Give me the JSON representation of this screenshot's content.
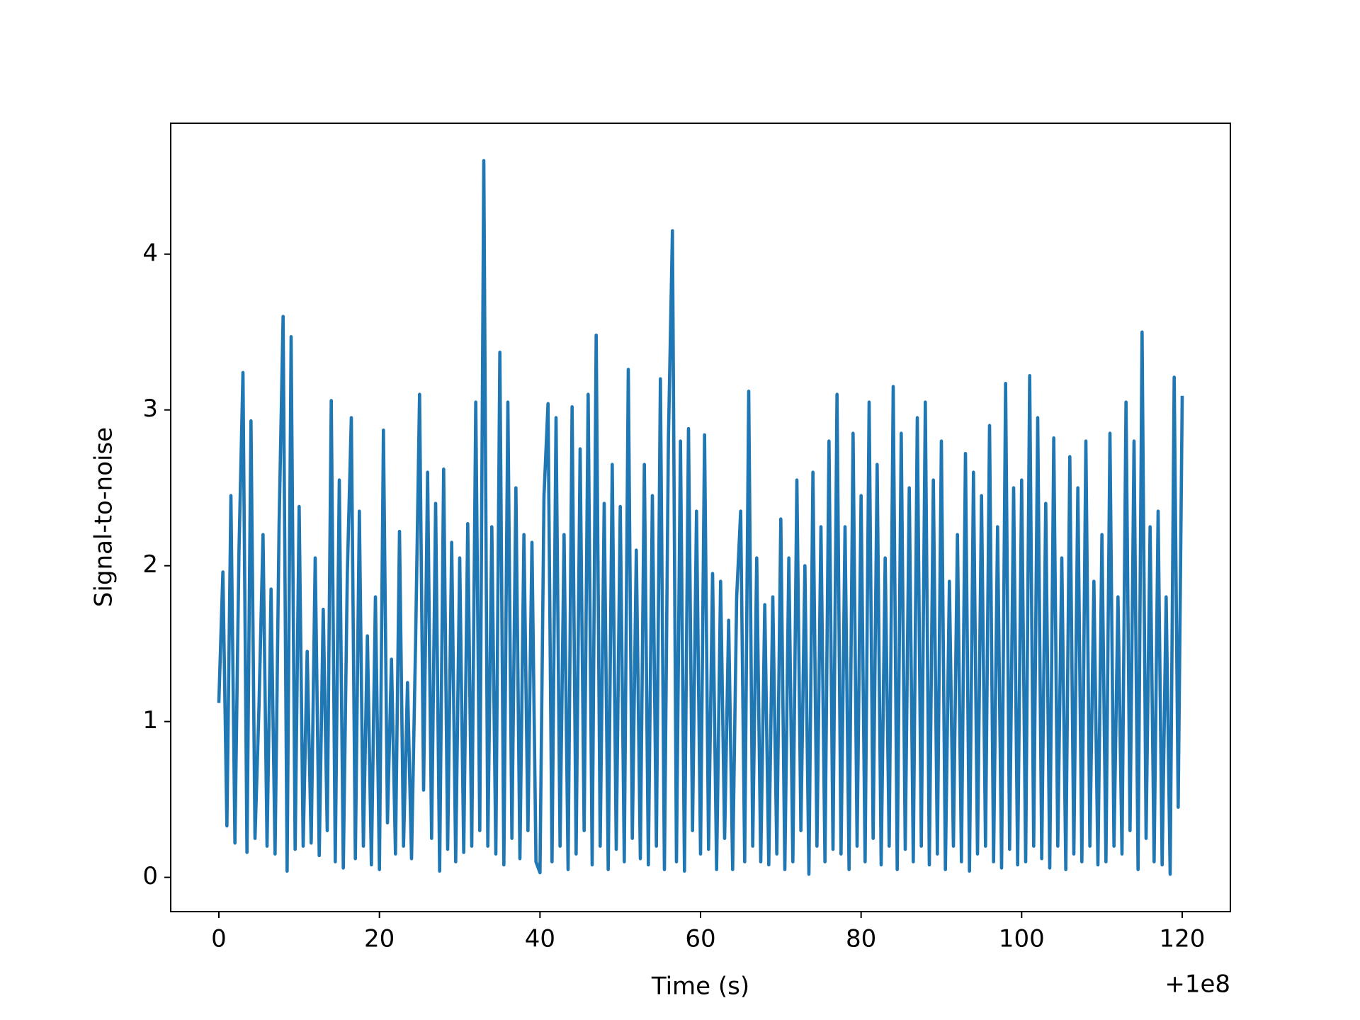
{
  "chart_data": {
    "type": "line",
    "xlabel": "Time (s)",
    "ylabel": "Signal-to-noise",
    "x_offset_label": "+1e8",
    "xlim": [
      -6,
      126
    ],
    "xticks": [
      0,
      20,
      40,
      60,
      80,
      100,
      120
    ],
    "ylim": [
      -0.22,
      4.84
    ],
    "yticks": [
      0,
      1,
      2,
      3,
      4
    ],
    "grid": false,
    "x": [
      0,
      0.5,
      1,
      1.5,
      2,
      2.5,
      3,
      3.5,
      4,
      4.5,
      5,
      5.5,
      6,
      6.5,
      7,
      7.5,
      8,
      8.5,
      9,
      9.5,
      10,
      10.5,
      11,
      11.5,
      12,
      12.5,
      13,
      13.5,
      14,
      14.5,
      15,
      15.5,
      16,
      16.5,
      17,
      17.5,
      18,
      18.5,
      19,
      19.5,
      20,
      20.5,
      21,
      21.5,
      22,
      22.5,
      23,
      23.5,
      24,
      24.5,
      25,
      25.5,
      26,
      26.5,
      27,
      27.5,
      28,
      28.5,
      29,
      29.5,
      30,
      30.5,
      31,
      31.5,
      32,
      32.5,
      33,
      33.5,
      34,
      34.5,
      35,
      35.5,
      36,
      36.5,
      37,
      37.5,
      38,
      38.5,
      39,
      39.5,
      40,
      40.5,
      41,
      41.5,
      42,
      42.5,
      43,
      43.5,
      44,
      44.5,
      45,
      45.5,
      46,
      46.5,
      47,
      47.5,
      48,
      48.5,
      49,
      49.5,
      50,
      50.5,
      51,
      51.5,
      52,
      52.5,
      53,
      53.5,
      54,
      54.5,
      55,
      55.5,
      56,
      56.5,
      57,
      57.5,
      58,
      58.5,
      59,
      59.5,
      60,
      60.5,
      61,
      61.5,
      62,
      62.5,
      63,
      63.5,
      64,
      64.5,
      65,
      65.5,
      66,
      66.5,
      67,
      67.5,
      68,
      68.5,
      69,
      69.5,
      70,
      70.5,
      71,
      71.5,
      72,
      72.5,
      73,
      73.5,
      74,
      74.5,
      75,
      75.5,
      76,
      76.5,
      77,
      77.5,
      78,
      78.5,
      79,
      79.5,
      80,
      80.5,
      81,
      81.5,
      82,
      82.5,
      83,
      83.5,
      84,
      84.5,
      85,
      85.5,
      86,
      86.5,
      87,
      87.5,
      88,
      88.5,
      89,
      89.5,
      90,
      90.5,
      91,
      91.5,
      92,
      92.5,
      93,
      93.5,
      94,
      94.5,
      95,
      95.5,
      96,
      96.5,
      97,
      97.5,
      98,
      98.5,
      99,
      99.5,
      100,
      100.5,
      101,
      101.5,
      102,
      102.5,
      103,
      103.5,
      104,
      104.5,
      105,
      105.5,
      106,
      106.5,
      107,
      107.5,
      108,
      108.5,
      109,
      109.5,
      110,
      110.5,
      111,
      111.5,
      112,
      112.5,
      113,
      113.5,
      114,
      114.5,
      115,
      115.5,
      116,
      116.5,
      117,
      117.5,
      118,
      118.5,
      119,
      119.5,
      120
    ],
    "series": [
      {
        "color": "#1f77b4",
        "values": [
          1.13,
          1.96,
          0.33,
          2.45,
          0.22,
          2.08,
          3.24,
          0.16,
          2.93,
          0.25,
          1.1,
          2.2,
          0.2,
          1.85,
          0.15,
          2.26,
          3.6,
          0.04,
          3.47,
          0.18,
          2.38,
          0.2,
          1.45,
          0.22,
          2.05,
          0.14,
          1.72,
          0.3,
          3.06,
          0.1,
          2.55,
          0.06,
          1.95,
          2.95,
          0.12,
          2.35,
          0.2,
          1.55,
          0.08,
          1.8,
          0.05,
          2.87,
          0.35,
          1.4,
          0.15,
          2.22,
          0.2,
          1.25,
          0.12,
          1.5,
          3.1,
          0.56,
          2.6,
          0.25,
          2.4,
          0.04,
          2.62,
          0.18,
          2.15,
          0.1,
          2.05,
          0.16,
          2.27,
          0.2,
          3.05,
          0.3,
          4.6,
          0.2,
          2.25,
          0.15,
          3.37,
          0.08,
          3.05,
          0.25,
          2.5,
          0.12,
          2.2,
          0.3,
          2.15,
          0.1,
          0.03,
          2.45,
          3.04,
          0.1,
          2.95,
          0.2,
          2.2,
          0.05,
          3.02,
          0.15,
          2.75,
          0.3,
          3.1,
          0.08,
          3.48,
          0.2,
          2.4,
          0.05,
          2.65,
          0.18,
          2.38,
          0.1,
          3.26,
          0.25,
          2.1,
          0.12,
          2.65,
          0.08,
          2.45,
          0.2,
          3.2,
          0.05,
          2.82,
          4.15,
          0.1,
          2.8,
          0.04,
          2.88,
          0.3,
          2.35,
          0.15,
          2.84,
          0.18,
          1.95,
          0.05,
          1.9,
          0.25,
          1.65,
          0.05,
          1.8,
          2.35,
          0.1,
          3.12,
          0.2,
          2.05,
          0.1,
          1.75,
          0.08,
          1.8,
          0.15,
          2.3,
          0.05,
          2.05,
          0.1,
          2.55,
          0.3,
          2.0,
          0.02,
          2.6,
          0.2,
          2.25,
          0.1,
          2.8,
          0.18,
          3.1,
          0.15,
          2.25,
          0.05,
          2.85,
          0.2,
          2.45,
          0.1,
          3.05,
          0.25,
          2.65,
          0.08,
          2.05,
          0.2,
          3.15,
          0.05,
          2.85,
          0.18,
          2.5,
          0.1,
          2.95,
          0.2,
          3.05,
          0.08,
          2.55,
          0.15,
          2.8,
          0.05,
          1.9,
          0.2,
          2.2,
          0.1,
          2.72,
          0.04,
          2.6,
          0.15,
          2.45,
          0.2,
          2.9,
          0.1,
          2.25,
          0.06,
          3.17,
          0.18,
          2.5,
          0.08,
          2.55,
          0.1,
          3.22,
          0.2,
          2.95,
          0.12,
          2.4,
          0.06,
          2.82,
          0.2,
          2.05,
          0.05,
          2.7,
          0.15,
          2.5,
          0.1,
          2.8,
          0.2,
          1.9,
          0.08,
          2.2,
          0.1,
          2.85,
          0.2,
          1.8,
          0.15,
          3.05,
          0.3,
          2.8,
          0.05,
          3.5,
          0.25,
          2.25,
          0.1,
          2.35,
          0.08,
          1.8,
          0.02,
          3.21,
          0.45,
          3.08
        ]
      }
    ]
  }
}
